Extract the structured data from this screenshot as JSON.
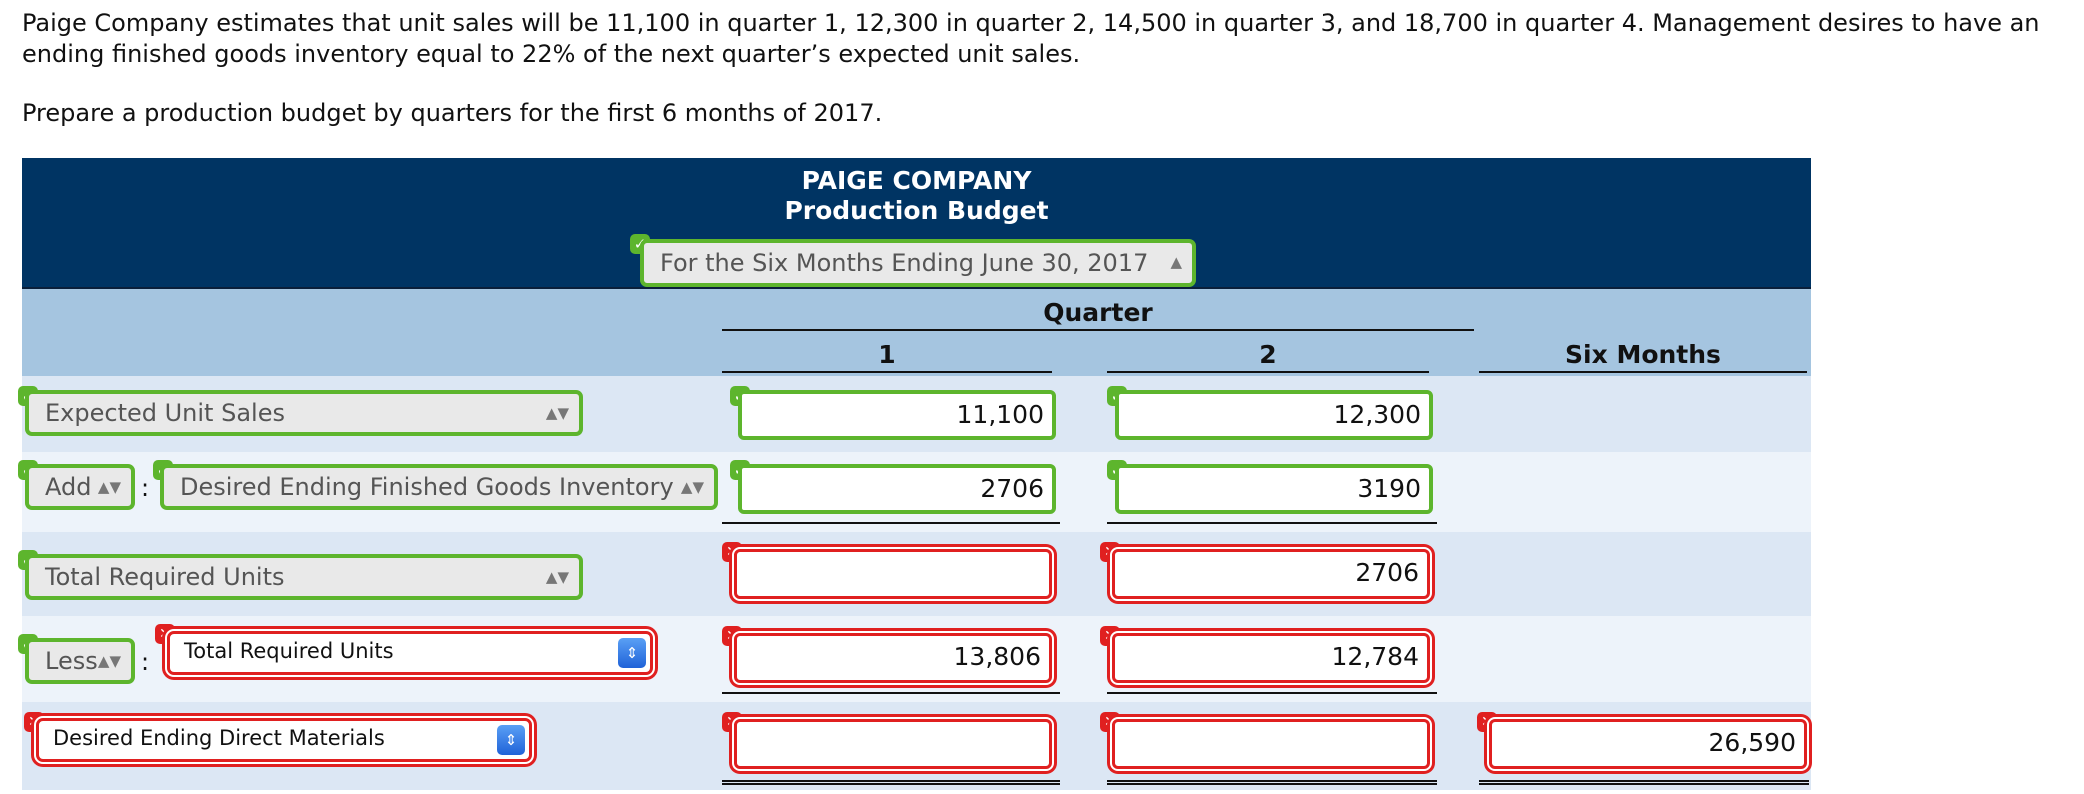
{
  "problem": {
    "text": "Paige Company estimates that unit sales will be 11,100 in quarter 1, 12,300 in quarter 2, 14,500 in quarter 3, and 18,700 in quarter 4. Management desires to have an ending finished goods inventory equal to 22% of the next quarter’s expected unit sales.",
    "instruction": "Prepare a production budget by quarters for the first 6 months of 2017."
  },
  "budget": {
    "company": "PAIGE COMPANY",
    "title": "Production Budget",
    "period": "For the Six Months Ending June 30, 2017",
    "quarter_label": "Quarter",
    "col_q1": "1",
    "col_q2": "2",
    "col_six": "Six Months"
  },
  "rows": [
    {
      "label": "Expected Unit Sales",
      "q1": "11,100",
      "q2": "12,300",
      "six": ""
    },
    {
      "prefix": "Add",
      "label": "Desired Ending Finished Goods Inventory",
      "q1": "2706",
      "q2": "3190",
      "six": ""
    },
    {
      "label": "Total Required Units",
      "q1": "",
      "q2": "2706",
      "six": ""
    },
    {
      "prefix": "Less",
      "label": "Total Required Units",
      "q1": "13,806",
      "q2": "12,784",
      "six": ""
    },
    {
      "label": "Desired Ending Direct Materials",
      "q1": "",
      "q2": "",
      "six": "26,590"
    }
  ],
  "colors": {
    "header_bg": "#003463",
    "subheader_bg": "#a5c5e0",
    "correct": "#5db52d",
    "incorrect": "#e02020"
  },
  "icons": {
    "correct": "check-icon",
    "incorrect": "x-mark-icon",
    "select": "select-arrows-icon"
  }
}
